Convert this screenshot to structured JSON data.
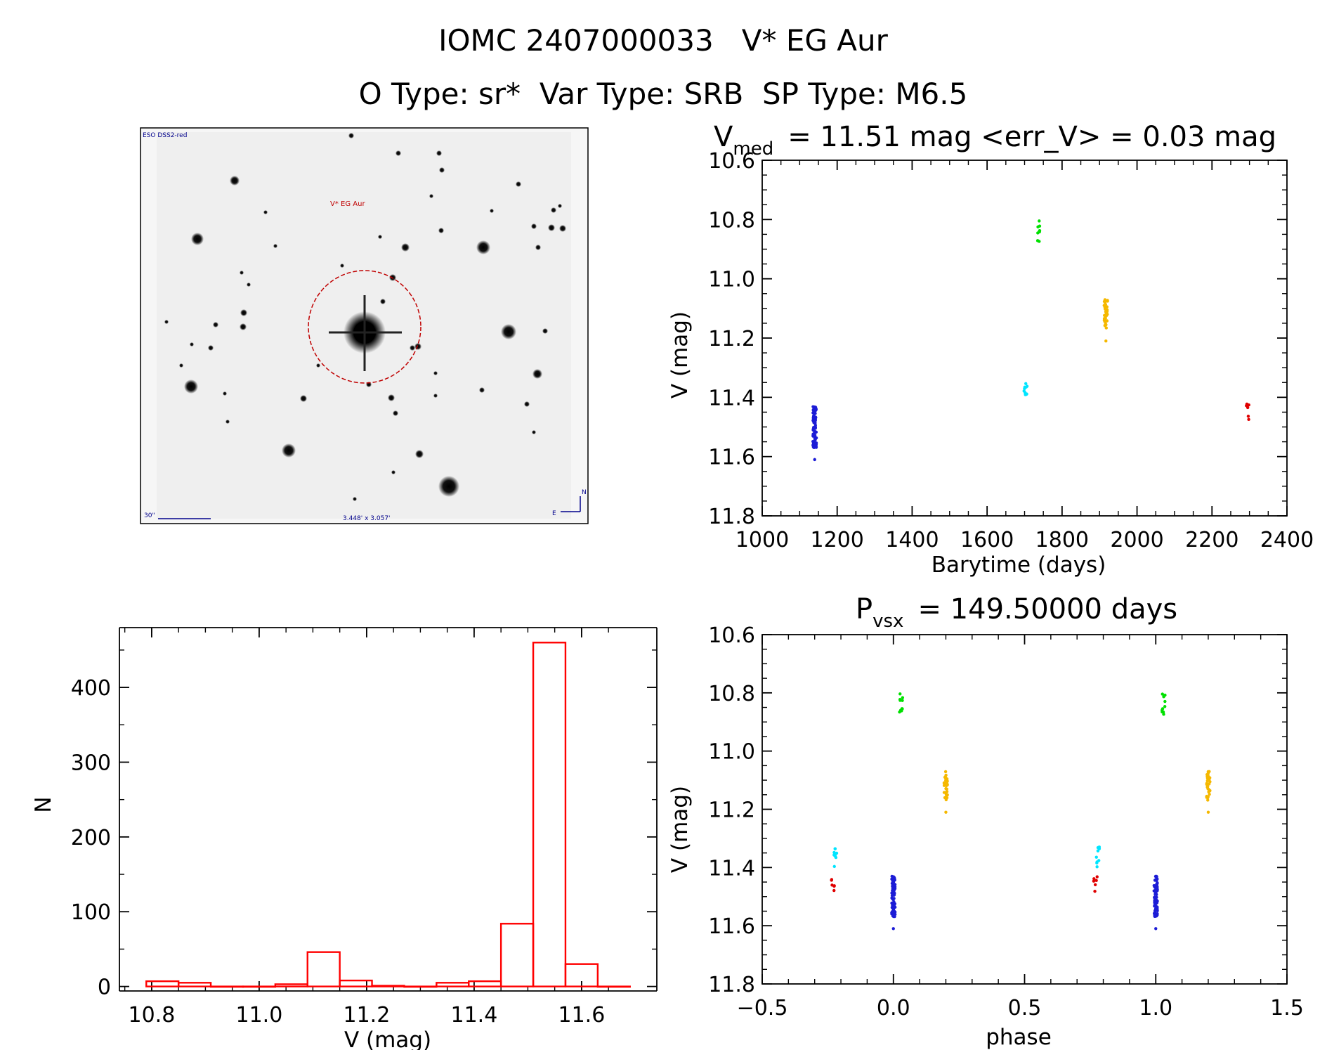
{
  "header": {
    "line1": "IOMC 2407000033   V* EG Aur",
    "line2": "O Type: sr*  Var Type: SRB  SP Type: M6.5"
  },
  "sky_image": {
    "survey_label": "ESO DSS2-red",
    "target_label": "V* EG Aur",
    "scale_label": "30\"",
    "fov_label": "3.448' x 3.057'",
    "north_label": "N",
    "east_label": "E"
  },
  "colors": {
    "hist": "#ff0000",
    "series": [
      "#1c1cd6",
      "#00e5ff",
      "#00e000",
      "#f5b800",
      "#e00000"
    ]
  },
  "chart_data": [
    {
      "type": "scatter",
      "name": "light_curve",
      "title": "V_med = 11.51 mag <err_V> = 0.03 mag",
      "title_parts": {
        "main": "V",
        "sub": "med",
        "rest": "= 11.51 mag <err_V> = 0.03 mag"
      },
      "xlabel": "Barytime (days)",
      "ylabel": "V (mag)",
      "xlim": [
        1000,
        2400
      ],
      "ylim": [
        10.6,
        11.8
      ],
      "y_inverted": true,
      "xticks": [
        1000,
        1200,
        1400,
        1600,
        1800,
        2000,
        2200,
        2400
      ],
      "yticks": [
        "10.6",
        "10.8",
        "11.0",
        "11.2",
        "11.4",
        "11.6",
        "11.8"
      ],
      "groups": [
        {
          "x": 1140,
          "ymin": 11.43,
          "ymax": 11.57,
          "yextra": [
            11.61
          ],
          "n": 90,
          "color_index": 0
        },
        {
          "x": 1703,
          "ymin": 11.32,
          "ymax": 11.4,
          "yextra": [],
          "n": 10,
          "color_index": 1
        },
        {
          "x": 1738,
          "ymin": 10.8,
          "ymax": 10.88,
          "yextra": [],
          "n": 10,
          "color_index": 2
        },
        {
          "x": 1917,
          "ymin": 11.07,
          "ymax": 11.17,
          "yextra": [
            11.21
          ],
          "n": 35,
          "color_index": 3
        },
        {
          "x": 2296,
          "ymin": 11.42,
          "ymax": 11.49,
          "yextra": [],
          "n": 6,
          "color_index": 4
        }
      ]
    },
    {
      "type": "bar",
      "name": "histogram",
      "xlabel": "V (mag)",
      "ylabel": "N",
      "xlim": [
        10.74,
        11.74
      ],
      "ylim": [
        -6,
        480
      ],
      "xticks": [
        "10.8",
        "11.0",
        "11.2",
        "11.4",
        "11.6"
      ],
      "yticks": [
        "0",
        "100",
        "200",
        "300",
        "400"
      ],
      "bin_width": 0.06,
      "bins": [
        {
          "x0": 10.79,
          "count": 7
        },
        {
          "x0": 10.85,
          "count": 5
        },
        {
          "x0": 10.91,
          "count": 0
        },
        {
          "x0": 10.97,
          "count": 0
        },
        {
          "x0": 11.03,
          "count": 3
        },
        {
          "x0": 11.09,
          "count": 46
        },
        {
          "x0": 11.15,
          "count": 8
        },
        {
          "x0": 11.21,
          "count": 1
        },
        {
          "x0": 11.27,
          "count": 0
        },
        {
          "x0": 11.33,
          "count": 5
        },
        {
          "x0": 11.39,
          "count": 7
        },
        {
          "x0": 11.45,
          "count": 84
        },
        {
          "x0": 11.51,
          "count": 460
        },
        {
          "x0": 11.57,
          "count": 30
        },
        {
          "x0": 11.63,
          "count": 0
        }
      ]
    },
    {
      "type": "scatter",
      "name": "phase_curve",
      "title": "P_vsx = 149.50000 days",
      "title_parts": {
        "main": "P",
        "sub": "vsx",
        "rest": "= 149.50000 days"
      },
      "xlabel": "phase",
      "ylabel": "V (mag)",
      "xlim": [
        -0.5,
        1.5
      ],
      "ylim": [
        10.6,
        11.8
      ],
      "y_inverted": true,
      "xticks": [
        "−0.5",
        "0.0",
        "0.5",
        "1.0",
        "1.5"
      ],
      "yticks": [
        "10.6",
        "10.8",
        "11.0",
        "11.2",
        "11.4",
        "11.6",
        "11.8"
      ],
      "groups": [
        {
          "x": 0.0,
          "ymin": 11.43,
          "ymax": 11.57,
          "yextra": [
            11.61
          ],
          "n": 90,
          "color_index": 0
        },
        {
          "x": 1.0,
          "ymin": 11.43,
          "ymax": 11.57,
          "yextra": [
            11.61
          ],
          "n": 90,
          "color_index": 0
        },
        {
          "x": -0.22,
          "ymin": 11.32,
          "ymax": 11.4,
          "yextra": [],
          "n": 10,
          "color_index": 1
        },
        {
          "x": 0.78,
          "ymin": 11.32,
          "ymax": 11.4,
          "yextra": [],
          "n": 10,
          "color_index": 1
        },
        {
          "x": 0.03,
          "ymin": 10.8,
          "ymax": 10.88,
          "yextra": [],
          "n": 10,
          "color_index": 2
        },
        {
          "x": 1.03,
          "ymin": 10.8,
          "ymax": 10.88,
          "yextra": [],
          "n": 10,
          "color_index": 2
        },
        {
          "x": 0.2,
          "ymin": 11.07,
          "ymax": 11.17,
          "yextra": [
            11.21
          ],
          "n": 35,
          "color_index": 3
        },
        {
          "x": 1.2,
          "ymin": 11.07,
          "ymax": 11.17,
          "yextra": [
            11.21
          ],
          "n": 35,
          "color_index": 3
        },
        {
          "x": -0.23,
          "ymin": 11.42,
          "ymax": 11.49,
          "yextra": [],
          "n": 6,
          "color_index": 4
        },
        {
          "x": 0.77,
          "ymin": 11.42,
          "ymax": 11.49,
          "yextra": [],
          "n": 6,
          "color_index": 4
        }
      ]
    }
  ]
}
